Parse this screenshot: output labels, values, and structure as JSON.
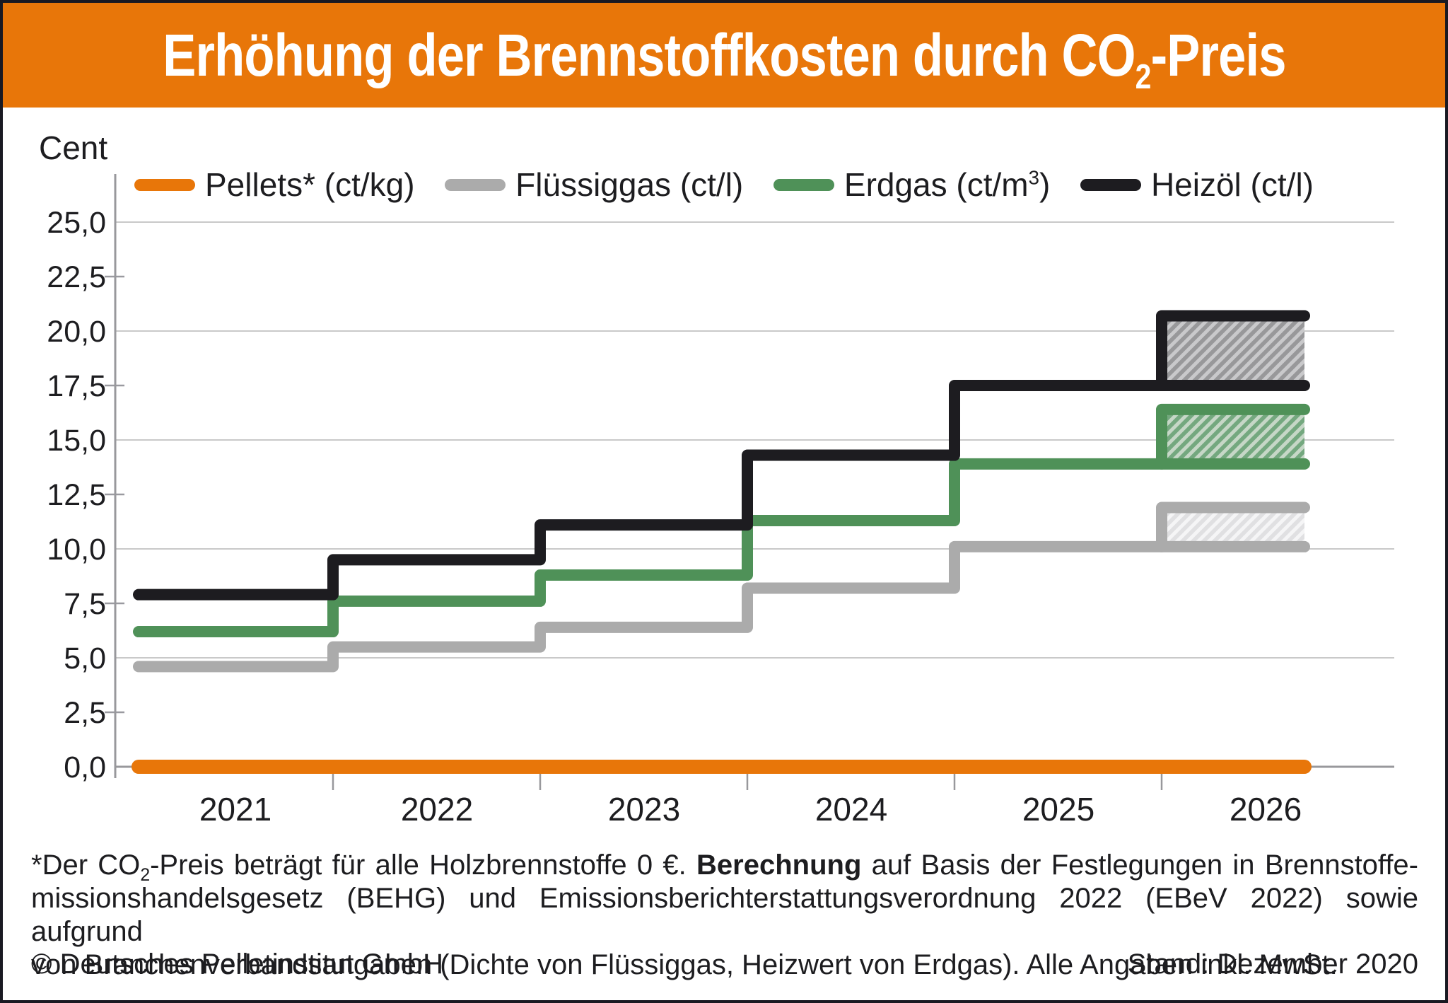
{
  "title": {
    "prefix": "Erhöhung der Brennstoffkosten durch CO",
    "sub": "2",
    "suffix": "-Preis"
  },
  "unit_label": "Cent",
  "legend": {
    "items": [
      {
        "id": "pellets",
        "prefix": "Pellets* (ct/kg)",
        "sup": "",
        "suffix": "",
        "color": "#e87609"
      },
      {
        "id": "fluessiggas",
        "prefix": "Flüssiggas (ct/l)",
        "sup": "",
        "suffix": "",
        "color": "#ababab"
      },
      {
        "id": "erdgas",
        "prefix": "Erdgas (ct/m",
        "sup": "3",
        "suffix": ")",
        "color": "#4f9158"
      },
      {
        "id": "heizoel",
        "prefix": "Heizöl (ct/l)",
        "sup": "",
        "suffix": "",
        "color": "#1d1c20"
      }
    ]
  },
  "axis": {
    "y_tick_values": [
      25,
      22.5,
      20,
      17.5,
      15,
      12.5,
      10,
      7.5,
      5,
      2.5,
      0
    ],
    "y_tick_labels": [
      "25,0",
      "22,5",
      "20,0",
      "17,5",
      "15,0",
      "12,5",
      "10,0",
      "7,5",
      "5,0",
      "2,5",
      "0,0"
    ],
    "x_labels": [
      "2021",
      "2022",
      "2023",
      "2024",
      "2025",
      "2026"
    ]
  },
  "chart_data": {
    "type": "line",
    "subtype": "step",
    "title": "Erhöhung der Brennstoffkosten durch CO2-Preis",
    "ylabel": "Cent",
    "xlabel": "",
    "x_categories": [
      "2021",
      "2022",
      "2023",
      "2024",
      "2025",
      "2026"
    ],
    "ylim": [
      0,
      25
    ],
    "y_major_gridlines": [
      5,
      10,
      15,
      20,
      25
    ],
    "y_minor_ticks": [
      2.5,
      7.5,
      12.5,
      17.5,
      22.5
    ],
    "grid": "horizontal-major",
    "legend_position": "top",
    "series": [
      {
        "id": "pellets",
        "name": "Pellets* (ct/kg)",
        "color": "#e87609",
        "values": [
          0,
          0,
          0,
          0,
          0,
          0
        ]
      },
      {
        "id": "fluessiggas",
        "name": "Flüssiggas (ct/l)",
        "color": "#ababab",
        "values": [
          4.6,
          5.5,
          6.4,
          8.2,
          10.1,
          10.1
        ],
        "range_2026": [
          10.1,
          11.9
        ],
        "hatch_bg": "#e0e0e2",
        "hatch_line": "#f5f5f6"
      },
      {
        "id": "erdgas",
        "name": "Erdgas (ct/m3)",
        "color": "#4f9158",
        "values": [
          6.2,
          7.6,
          8.8,
          11.3,
          13.9,
          13.9
        ],
        "range_2026": [
          13.9,
          16.4
        ],
        "hatch_bg": "#74a87f",
        "hatch_line": "#c6d7c7"
      },
      {
        "id": "heizoel",
        "name": "Heizöl (ct/l)",
        "color": "#1d1c20",
        "values": [
          7.9,
          9.5,
          11.1,
          14.3,
          17.5,
          17.5
        ],
        "range_2026": [
          17.5,
          20.7
        ],
        "hatch_bg": "#98989a",
        "hatch_line": "#c9c9cb"
      }
    ]
  },
  "footnote": {
    "line1": {
      "a": "*Der CO",
      "sub": "2",
      "b": "-Preis beträgt für alle Holzbrennstoffe 0 €. ",
      "bold": "Berechnung",
      "c": " auf Basis der Festlegungen in Brennstoffe-"
    },
    "line2": "missionshandelsgesetz (BEHG) und Emissionsberichterstattungsverordnung 2022 (EBeV 2022) sowie aufgrund",
    "line3": "von Branchenverbandsangaben (Dichte von Flüssiggas, Heizwert von Erdgas). Alle Angaben inkl. MwSt."
  },
  "footer": {
    "copyright": "© Deutsches Pelletinstitut GmbH",
    "stand": "Stand: Dezember 2020"
  }
}
